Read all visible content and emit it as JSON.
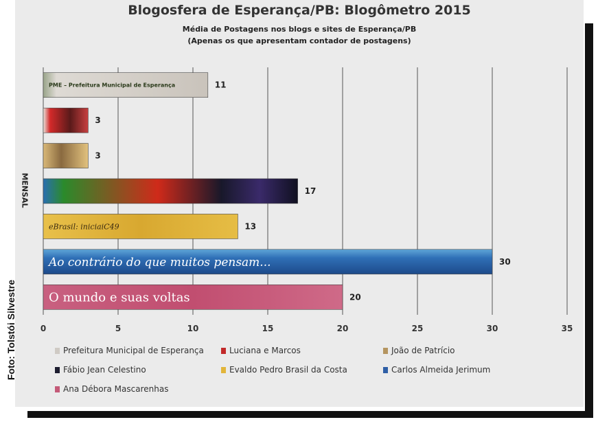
{
  "photo_credit": "Foto: Tolstói Silvestre",
  "chart_data": {
    "type": "bar",
    "orientation": "horizontal",
    "title": "Blogosfera de Esperança/PB: Blogômetro 2015",
    "subtitle": "Média de Postagens nos blogs e sites de Esperança/PB",
    "subtitle2": "(Apenas os que apresentam contador de postagens)",
    "ylabel": "MENSAL",
    "xlim": [
      0,
      35
    ],
    "xticks": [
      0,
      5,
      10,
      15,
      20,
      25,
      30,
      35
    ],
    "grid": true,
    "legend_position": "bottom",
    "series": [
      {
        "name": "Prefeitura Municipal de Esperança",
        "value": 11,
        "color": "#cfcac4",
        "banner_text": "PME – Prefeitura Municipal de Esperança"
      },
      {
        "name": "Luciana e Marcos",
        "value": 3,
        "color": "#c22a2a",
        "banner_text": ""
      },
      {
        "name": "João de Patrício",
        "value": 3,
        "color": "#b59560",
        "banner_text": ""
      },
      {
        "name": "Fábio Jean Celestino",
        "value": 17,
        "color": "#1d1d30",
        "banner_text": ""
      },
      {
        "name": "Evaldo Pedro Brasil da Costa",
        "value": 13,
        "color": "#e2b53a",
        "banner_text": "eBrasil: iniciaiC49"
      },
      {
        "name": "Carlos Almeida Jerimum",
        "value": 30,
        "color": "#2f5fa6",
        "banner_text": "Ao contrário do que muitos pensam..."
      },
      {
        "name": "Ana Débora Mascarenhas",
        "value": 20,
        "color": "#c45a78",
        "banner_text": "O mundo e suas voltas"
      }
    ]
  }
}
